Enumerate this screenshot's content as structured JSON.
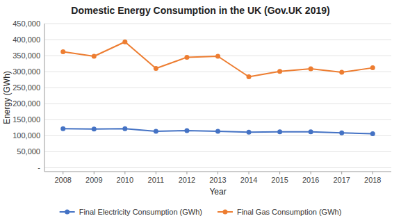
{
  "chart_data": {
    "type": "line",
    "title": "Domestic Energy Consumption in the UK (Gov.UK 2019)",
    "x_label": "Year",
    "y_label": "Energy (GWh)",
    "x": [
      2008,
      2009,
      2010,
      2011,
      2012,
      2013,
      2014,
      2015,
      2016,
      2017,
      2018
    ],
    "series": [
      {
        "name": "Final Electricity Consumption (GWh)",
        "color": "#4472c4",
        "marker": "circle",
        "values": [
          122000,
          121000,
          122000,
          114000,
          116000,
          114000,
          111000,
          112000,
          112000,
          109000,
          106000
        ]
      },
      {
        "name": "Final Gas Consumption (GWh)",
        "color": "#ed7d31",
        "marker": "circle",
        "values": [
          362000,
          348000,
          393000,
          310000,
          345000,
          348000,
          284000,
          301000,
          309000,
          298000,
          312000
        ]
      }
    ],
    "xlim": [
      2007.4,
      2018.6
    ],
    "xticks": [
      2008,
      2009,
      2010,
      2011,
      2012,
      2013,
      2014,
      2015,
      2016,
      2017,
      2018
    ],
    "ylim": [
      -12000,
      450000
    ],
    "yticks": [
      {
        "value": 0,
        "label": "-"
      },
      {
        "value": 50000,
        "label": "50,000"
      },
      {
        "value": 100000,
        "label": "100,000"
      },
      {
        "value": 150000,
        "label": "150,000"
      },
      {
        "value": 200000,
        "label": "200,000"
      },
      {
        "value": 250000,
        "label": "250,000"
      },
      {
        "value": 300000,
        "label": "300,000"
      },
      {
        "value": 350000,
        "label": "350,000"
      },
      {
        "value": 400000,
        "label": "400,000"
      },
      {
        "value": 450000,
        "label": "450,000"
      }
    ],
    "grid": true,
    "legend": "bottom"
  }
}
